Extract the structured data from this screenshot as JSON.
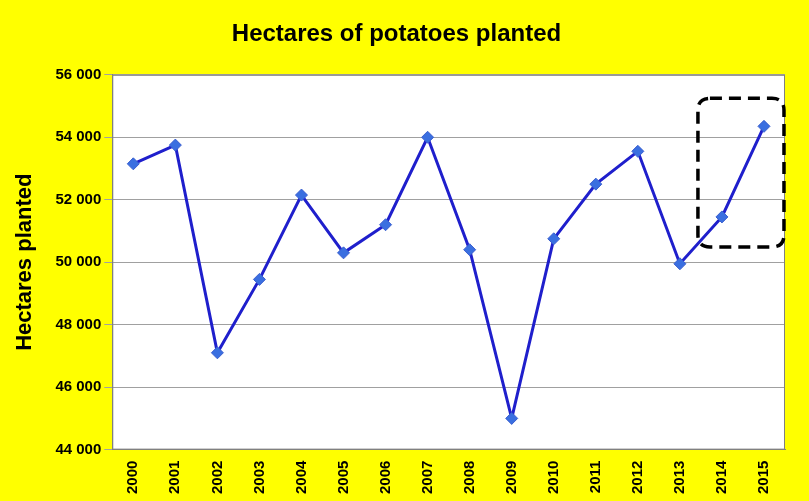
{
  "chart_data": {
    "type": "line",
    "title": "Hectares of potatoes planted",
    "ylabel": "Hectares planted",
    "categories": [
      "2000",
      "2001",
      "2002",
      "2003",
      "2004",
      "2005",
      "2006",
      "2007",
      "2008",
      "2009",
      "2010",
      "2011",
      "2012",
      "2013",
      "2014",
      "2015"
    ],
    "values": [
      53150,
      53750,
      47100,
      49450,
      52150,
      50300,
      51200,
      54000,
      50400,
      45000,
      50750,
      52500,
      53550,
      49950,
      51450,
      54350
    ],
    "color": "#1f1fcc",
    "marker": "diamond",
    "ylim": [
      44000,
      56000
    ],
    "yticks": [
      {
        "value": 44000,
        "label": "44 000"
      },
      {
        "value": 46000,
        "label": "46 000"
      },
      {
        "value": 48000,
        "label": "48 000"
      },
      {
        "value": 50000,
        "label": "50 000"
      },
      {
        "value": 52000,
        "label": "52 000"
      },
      {
        "value": 54000,
        "label": "54 000"
      },
      {
        "value": 56000,
        "label": "56 000"
      }
    ],
    "grid": true
  }
}
